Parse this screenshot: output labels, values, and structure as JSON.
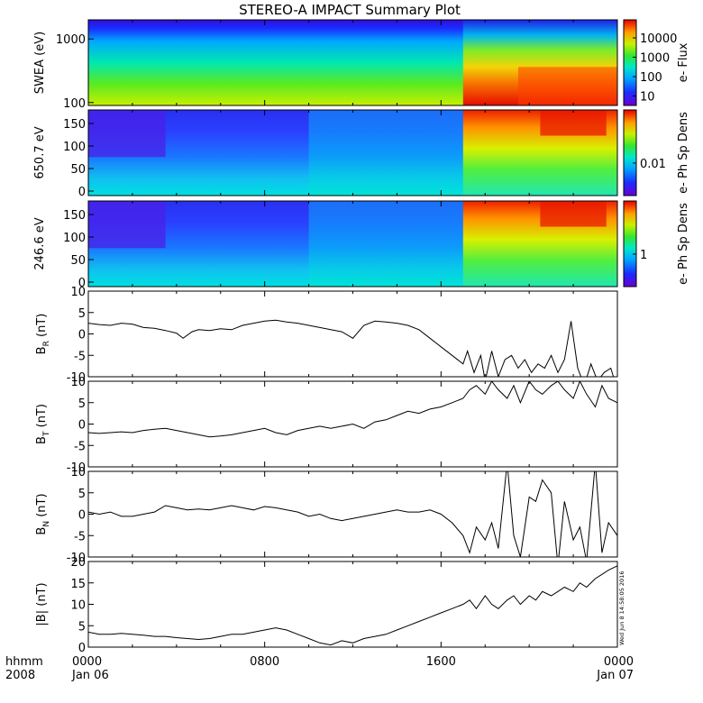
{
  "title": "STEREO-A IMPACT Summary Plot",
  "stamp": "Wed Jun  8 14:58:05 2016",
  "time_axis": {
    "row1_label": "hhmm",
    "row2_label": "2008",
    "ticks": [
      {
        "hour": 0,
        "hhmm": "0000",
        "date": "Jan 06"
      },
      {
        "hour": 8,
        "hhmm": "0800",
        "date": ""
      },
      {
        "hour": 16,
        "hhmm": "1600",
        "date": ""
      },
      {
        "hour": 24,
        "hhmm": "0000",
        "date": "Jan 07"
      }
    ]
  },
  "chart_data": [
    {
      "type": "heatmap",
      "id": "swea",
      "ylabel": "SWEA (eV)",
      "yscale": "log",
      "ylim": [
        90,
        2000
      ],
      "yticks": [
        "1000",
        "100"
      ],
      "colorbar_label": "e- Flux",
      "colorbar_ticks": [
        "10000",
        "1000",
        "100",
        "10"
      ]
    },
    {
      "type": "heatmap",
      "id": "pad650",
      "ylabel": "650.7 eV",
      "ylim": [
        -10,
        180
      ],
      "yticks": [
        "150",
        "100",
        "50",
        "0"
      ],
      "colorbar_label": "e- Ph Sp Dens",
      "colorbar_ticks": [
        "0.01"
      ]
    },
    {
      "type": "heatmap",
      "id": "pad246",
      "ylabel": "246.6 eV",
      "ylim": [
        -10,
        180
      ],
      "yticks": [
        "150",
        "100",
        "50",
        "0"
      ],
      "colorbar_label": "e- Ph Sp Dens",
      "colorbar_ticks": [
        "1"
      ]
    },
    {
      "type": "line",
      "id": "br",
      "ylabel_main": "B",
      "ylabel_sub": "R",
      "ylabel_unit": "(nT)",
      "ylim": [
        -10,
        10
      ],
      "yticks": [
        "10",
        "5",
        "0",
        "-5",
        "-10"
      ],
      "x": [
        0,
        0.5,
        1,
        1.5,
        2,
        2.5,
        3,
        3.5,
        4,
        4.3,
        4.7,
        5,
        5.5,
        6,
        6.5,
        7,
        7.5,
        8,
        8.5,
        9,
        9.5,
        10,
        10.5,
        11,
        11.5,
        12,
        12.5,
        13,
        13.5,
        14,
        14.5,
        15,
        15.5,
        16,
        16.5,
        17,
        17.2,
        17.5,
        17.8,
        18,
        18.3,
        18.6,
        18.9,
        19.2,
        19.5,
        19.8,
        20.1,
        20.4,
        20.7,
        21,
        21.3,
        21.6,
        21.9,
        22.2,
        22.5,
        22.8,
        23.1,
        23.4,
        23.7,
        24
      ],
      "y": [
        2.5,
        2.2,
        2,
        2.5,
        2.3,
        1.5,
        1.3,
        0.8,
        0.2,
        -1,
        0.5,
        1,
        0.8,
        1.2,
        1,
        2,
        2.5,
        3,
        3.2,
        2.8,
        2.5,
        2,
        1.5,
        1,
        0.5,
        -1,
        2,
        3,
        2.8,
        2.5,
        2,
        1,
        -1,
        -3,
        -5,
        -7,
        -4,
        -9,
        -5,
        -11,
        -4,
        -10,
        -6,
        -5,
        -8,
        -6,
        -9,
        -7,
        -8,
        -5,
        -9,
        -6,
        3,
        -8,
        -12,
        -7,
        -11,
        -9,
        -8,
        -13
      ]
    },
    {
      "type": "line",
      "id": "bt",
      "ylabel_main": "B",
      "ylabel_sub": "T",
      "ylabel_unit": "(nT)",
      "ylim": [
        -10,
        10
      ],
      "yticks": [
        "10",
        "5",
        "0",
        "-5",
        "-10"
      ],
      "x": [
        0,
        0.5,
        1,
        1.5,
        2,
        2.5,
        3,
        3.5,
        4,
        4.5,
        5,
        5.5,
        6,
        6.5,
        7,
        7.5,
        8,
        8.5,
        9,
        9.5,
        10,
        10.5,
        11,
        11.5,
        12,
        12.5,
        13,
        13.5,
        14,
        14.5,
        15,
        15.5,
        16,
        16.5,
        17,
        17.3,
        17.6,
        18,
        18.3,
        18.6,
        19,
        19.3,
        19.6,
        20,
        20.3,
        20.6,
        21,
        21.3,
        21.6,
        22,
        22.3,
        22.6,
        23,
        23.3,
        23.6,
        24
      ],
      "y": [
        -2,
        -2.2,
        -2,
        -1.8,
        -2,
        -1.5,
        -1.2,
        -1,
        -1.5,
        -2,
        -2.5,
        -3,
        -2.8,
        -2.5,
        -2,
        -1.5,
        -1,
        -2,
        -2.5,
        -1.5,
        -1,
        -0.5,
        -1,
        -0.5,
        0,
        -1,
        0.5,
        1,
        2,
        3,
        2.5,
        3.5,
        4,
        5,
        6,
        8,
        9,
        7,
        10,
        8,
        6,
        9,
        5,
        10,
        8,
        7,
        9,
        10,
        8,
        6,
        10,
        7,
        4,
        9,
        6,
        5
      ]
    },
    {
      "type": "line",
      "id": "bn",
      "ylabel_main": "B",
      "ylabel_sub": "N",
      "ylabel_unit": "(nT)",
      "ylim": [
        -10,
        10
      ],
      "yticks": [
        "10",
        "5",
        "0",
        "-5",
        "-10"
      ],
      "x": [
        0,
        0.5,
        1,
        1.5,
        2,
        2.5,
        3,
        3.5,
        4,
        4.5,
        5,
        5.5,
        6,
        6.5,
        7,
        7.5,
        8,
        8.5,
        9,
        9.5,
        10,
        10.5,
        11,
        11.5,
        12,
        12.5,
        13,
        13.5,
        14,
        14.5,
        15,
        15.5,
        16,
        16.5,
        17,
        17.3,
        17.6,
        18,
        18.3,
        18.6,
        19,
        19.3,
        19.6,
        20,
        20.3,
        20.6,
        21,
        21.3,
        21.6,
        22,
        22.3,
        22.6,
        23,
        23.3,
        23.6,
        24
      ],
      "y": [
        0.5,
        0,
        0.5,
        -0.5,
        -0.5,
        0,
        0.5,
        2,
        1.5,
        1,
        1.2,
        1,
        1.5,
        2,
        1.5,
        1,
        1.8,
        1.5,
        1,
        0.5,
        -0.5,
        0,
        -1,
        -1.5,
        -1,
        -0.5,
        0,
        0.5,
        1,
        0.5,
        0.5,
        1,
        0,
        -2,
        -5,
        -9,
        -3,
        -6,
        -2,
        -8,
        12,
        -5,
        -10,
        4,
        3,
        8,
        5,
        -12,
        3,
        -6,
        -3,
        -11,
        12,
        -9,
        -2,
        -5
      ]
    },
    {
      "type": "line",
      "id": "bmag",
      "ylabel_main": "|B|",
      "ylabel_unit": "(nT)",
      "ylim": [
        0,
        20
      ],
      "yticks": [
        "20",
        "15",
        "10",
        "5",
        "0"
      ],
      "x": [
        0,
        0.5,
        1,
        1.5,
        2,
        2.5,
        3,
        3.5,
        4,
        4.5,
        5,
        5.5,
        6,
        6.5,
        7,
        7.5,
        8,
        8.5,
        9,
        9.5,
        10,
        10.5,
        11,
        11.5,
        12,
        12.5,
        13,
        13.5,
        14,
        14.5,
        15,
        15.5,
        16,
        16.5,
        17,
        17.3,
        17.6,
        18,
        18.3,
        18.6,
        19,
        19.3,
        19.6,
        20,
        20.3,
        20.6,
        21,
        21.3,
        21.6,
        22,
        22.3,
        22.6,
        23,
        23.3,
        23.6,
        24
      ],
      "y": [
        3.5,
        3,
        3,
        3.2,
        3,
        2.8,
        2.5,
        2.5,
        2.2,
        2,
        1.8,
        2,
        2.5,
        3,
        3,
        3.5,
        4,
        4.5,
        4,
        3,
        2,
        1,
        0.5,
        1.5,
        1,
        2,
        2.5,
        3,
        4,
        5,
        6,
        7,
        8,
        9,
        10,
        11,
        9,
        12,
        10,
        9,
        11,
        12,
        10,
        12,
        11,
        13,
        12,
        13,
        14,
        13,
        15,
        14,
        16,
        17,
        18,
        19
      ]
    }
  ]
}
